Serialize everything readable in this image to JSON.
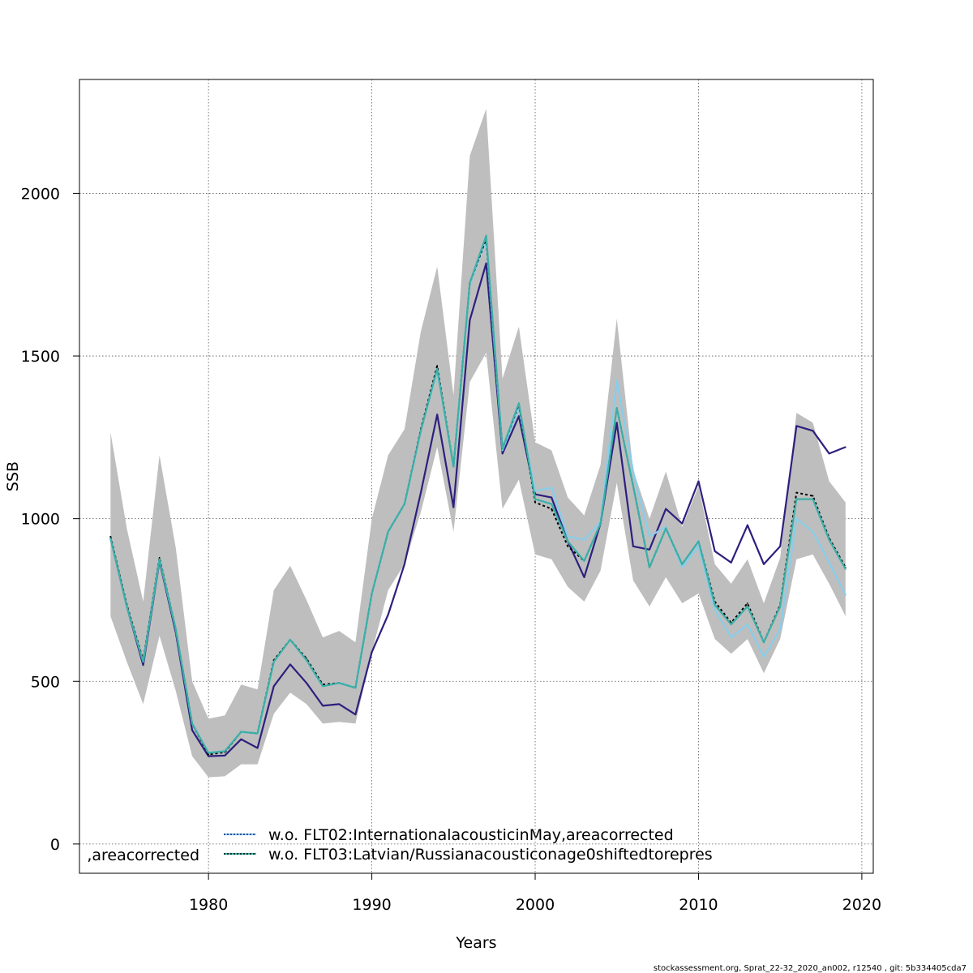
{
  "chart_data": {
    "type": "line",
    "xlabel": "Years",
    "ylabel": "SSB",
    "xlim": [
      1972.1,
      2020.7
    ],
    "ylim": [
      -90,
      2350
    ],
    "x_ticks": [
      1980,
      1990,
      2000,
      2010,
      2020
    ],
    "y_ticks": [
      0,
      500,
      1000,
      1500,
      2000
    ],
    "grid": true,
    "legend_placement": "bottom",
    "x": [
      1974,
      1975,
      1976,
      1977,
      1978,
      1979,
      1980,
      1981,
      1982,
      1983,
      1984,
      1985,
      1986,
      1987,
      1988,
      1989,
      1990,
      1991,
      1992,
      1993,
      1994,
      1995,
      1996,
      1997,
      1998,
      1999,
      2000,
      2001,
      2002,
      2003,
      2004,
      2005,
      2006,
      2007,
      2008,
      2009,
      2010,
      2011,
      2012,
      2013,
      2014,
      2015,
      2016,
      2017,
      2018,
      2019
    ],
    "confidence_band": {
      "color": "#bebebe",
      "lower": [
        700,
        560,
        430,
        640,
        470,
        270,
        205,
        208,
        245,
        245,
        400,
        465,
        430,
        370,
        375,
        370,
        590,
        780,
        860,
        1020,
        1220,
        960,
        1420,
        1510,
        1030,
        1120,
        890,
        875,
        790,
        745,
        840,
        1110,
        810,
        730,
        820,
        740,
        770,
        630,
        585,
        630,
        525,
        630,
        875,
        890,
        800,
        700
      ],
      "upper": [
        1265,
        970,
        745,
        1195,
        910,
        500,
        385,
        395,
        490,
        475,
        780,
        855,
        750,
        635,
        655,
        620,
        1000,
        1195,
        1275,
        1575,
        1775,
        1380,
        2115,
        2260,
        1430,
        1590,
        1235,
        1210,
        1065,
        1010,
        1165,
        1615,
        1150,
        1000,
        1145,
        975,
        1100,
        860,
        800,
        875,
        740,
        880,
        1325,
        1295,
        1115,
        1050
      ]
    },
    "series": [
      {
        "color": "#2d1f7e",
        "values": [
          940,
          730,
          550,
          870,
          650,
          350,
          270,
          272,
          322,
          295,
          485,
          552,
          495,
          425,
          430,
          398,
          590,
          705,
          860,
          1080,
          1320,
          1035,
          1610,
          1785,
          1200,
          1315,
          1075,
          1065,
          930,
          820,
          985,
          1295,
          915,
          905,
          1030,
          985,
          1115,
          900,
          865,
          980,
          860,
          915,
          1285,
          1270,
          1200,
          1220
        ]
      },
      {
        "name": "w.o. FLT02:InternationalacousticinMay,areacorrected",
        "color": "#87ceeb",
        "values": [
          940,
          730,
          560,
          875,
          660,
          370,
          280,
          285,
          345,
          340,
          560,
          628,
          565,
          485,
          495,
          480,
          770,
          960,
          1045,
          1270,
          1455,
          1160,
          1720,
          1855,
          1210,
          1340,
          1085,
          1095,
          945,
          935,
          990,
          1425,
          1145,
          945,
          975,
          850,
          915,
          720,
          635,
          675,
          575,
          660,
          1000,
          960,
          865,
          765
        ]
      },
      {
        "name": "w.o. FLT03:Latvian/Russianacousticonage0shiftedtorepres",
        "color": "#000000",
        "values": [
          945,
          735,
          565,
          880,
          660,
          370,
          275,
          282,
          345,
          340,
          565,
          628,
          570,
          490,
          495,
          480,
          770,
          960,
          1045,
          1275,
          1470,
          1160,
          1725,
          1860,
          1215,
          1350,
          1050,
          1030,
          915,
          870,
          985,
          1340,
          1100,
          850,
          970,
          860,
          930,
          745,
          680,
          740,
          620,
          735,
          1080,
          1070,
          940,
          850
        ]
      },
      {
        "color": "#3ab0a8",
        "values": [
          940,
          730,
          560,
          875,
          660,
          370,
          280,
          285,
          345,
          340,
          560,
          628,
          565,
          485,
          495,
          480,
          770,
          960,
          1045,
          1270,
          1460,
          1160,
          1725,
          1870,
          1215,
          1355,
          1060,
          1045,
          930,
          870,
          985,
          1340,
          1100,
          850,
          970,
          860,
          930,
          735,
          675,
          730,
          620,
          730,
          1060,
          1060,
          935,
          845
        ]
      }
    ],
    "legend": {
      "cut_entry": ",areacorrected",
      "entries": [
        {
          "label": "w.o. FLT02:InternationalacousticinMay,areacorrected",
          "line_color": "#87ceeb",
          "dash_color": "#1f1f7e"
        },
        {
          "label": "w.o. FLT03:Latvian/Russianacousticonage0shiftedtorepres",
          "line_color": "#3ab0a8",
          "dash_color": "#000000"
        }
      ]
    }
  },
  "footer": "stockassessment.org, Sprat_22-32_2020_an002, r12540 , git: 5b334405cda7"
}
